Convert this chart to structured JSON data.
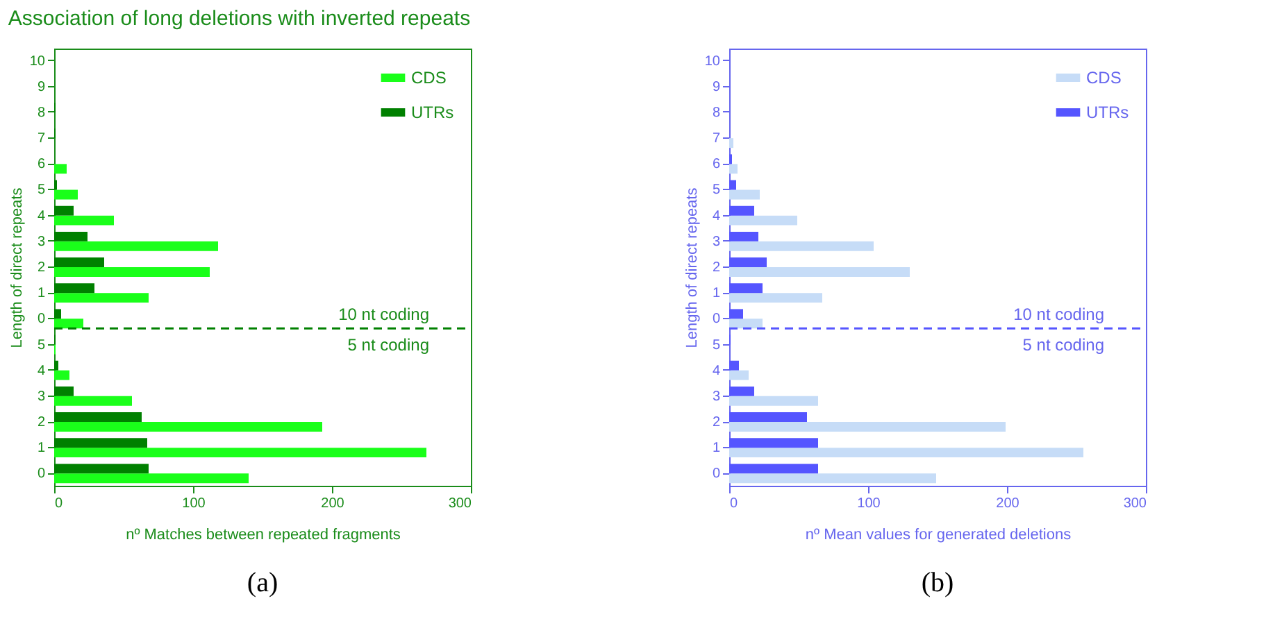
{
  "chart_data": [
    {
      "type": "bar",
      "orientation": "horizontal",
      "title": "Association of long deletions with inverted repeats",
      "xlabel": "nº Matches between repeated fragments",
      "ylabel": "Length of direct repeats",
      "categories": [
        "10",
        "9",
        "8",
        "7",
        "6",
        "5",
        "4",
        "3",
        "2",
        "1",
        "0",
        "5",
        "4",
        "3",
        "2",
        "1",
        "0"
      ],
      "series": [
        {
          "name": "CDS",
          "color": "#1aff1a",
          "values": [
            0,
            0,
            0,
            0,
            9,
            17,
            43,
            118,
            112,
            68,
            21,
            1,
            11,
            56,
            193,
            268,
            140
          ]
        },
        {
          "name": "UTRs",
          "color": "#008000",
          "values": [
            0,
            0,
            1,
            1,
            0,
            2,
            14,
            24,
            36,
            29,
            5,
            1,
            3,
            14,
            63,
            67,
            68
          ]
        }
      ],
      "xlim": [
        0,
        300
      ],
      "xticks": [
        0,
        100,
        200,
        300
      ],
      "grid": false,
      "legend": "top right",
      "ref_lines": [
        {
          "axis": "y",
          "value": "0",
          "line_style": "dashed",
          "color": "#008000"
        }
      ],
      "annotations": [
        "10 nt coding",
        "5 nt coding",
        "(a)"
      ]
    },
    {
      "type": "bar",
      "orientation": "horizontal",
      "xlabel": "nº Mean values for generated deletions",
      "ylabel": "Length of direct repeats",
      "categories": [
        "10",
        "9",
        "8",
        "7",
        "6",
        "5",
        "4",
        "3",
        "2",
        "1",
        "0",
        "5",
        "4",
        "3",
        "2",
        "1",
        "0"
      ],
      "series": [
        {
          "name": "CDS",
          "color": "#c6dcf7",
          "values": [
            0,
            0,
            0,
            3,
            6,
            22,
            49,
            104,
            130,
            67,
            24,
            0,
            14,
            64,
            199,
            255,
            149
          ]
        },
        {
          "name": "UTRs",
          "color": "#5555ff",
          "values": [
            0,
            0,
            0,
            0,
            2,
            5,
            18,
            21,
            27,
            24,
            10,
            1,
            7,
            18,
            56,
            64,
            64
          ]
        }
      ],
      "xlim": [
        0,
        300
      ],
      "xticks": [
        0,
        100,
        200,
        300
      ],
      "grid": false,
      "legend": "top right",
      "ref_lines": [
        {
          "axis": "y",
          "value": "0",
          "line_style": "dashed",
          "color": "#5555ff"
        }
      ],
      "annotations": [
        "10 nt coding",
        "5 nt coding",
        "(b)"
      ]
    }
  ]
}
